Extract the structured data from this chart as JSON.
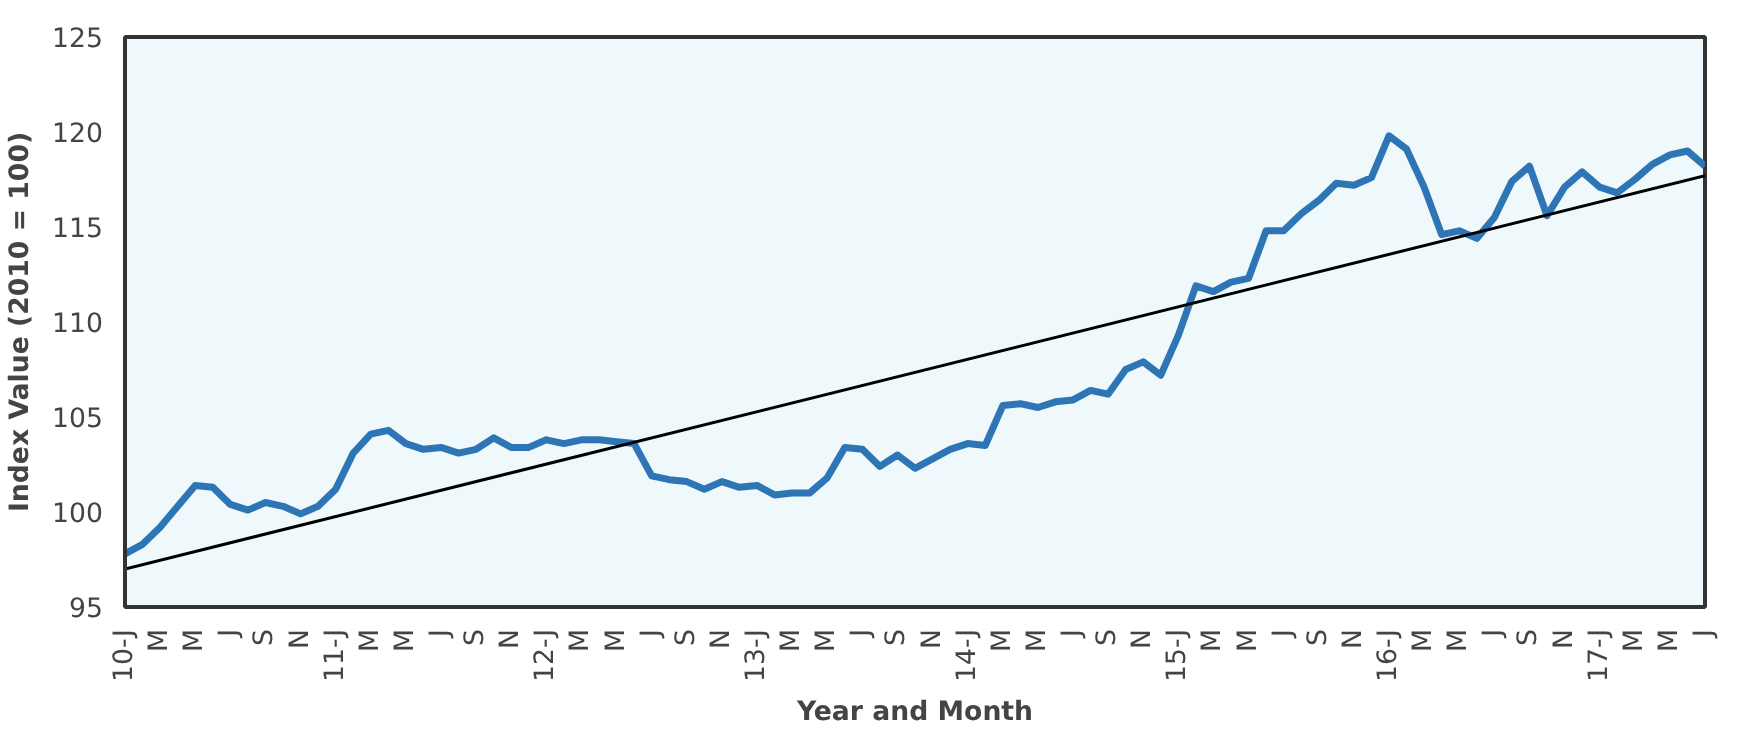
{
  "chart_data": {
    "type": "line",
    "xlabel": "Year and Month",
    "ylabel": "Index Value (2010 = 100)",
    "categories": [
      "10-J",
      null,
      "M",
      null,
      "M",
      null,
      "J",
      null,
      "S",
      null,
      "N",
      null,
      "11-J",
      null,
      "M",
      null,
      "M",
      null,
      "J",
      null,
      "S",
      null,
      "N",
      null,
      "12-J",
      null,
      "M",
      null,
      "M",
      null,
      "J",
      null,
      "S",
      null,
      "N",
      null,
      "13-J",
      null,
      "M",
      null,
      "M",
      null,
      "J",
      null,
      "S",
      null,
      "N",
      null,
      "14-J",
      null,
      "M",
      null,
      "M",
      null,
      "J",
      null,
      "S",
      null,
      "N",
      null,
      "15-J",
      null,
      "M",
      null,
      "M",
      null,
      "J",
      null,
      "S",
      null,
      "N",
      null,
      "16-J",
      null,
      "M",
      null,
      "M",
      null,
      "J",
      null,
      "S",
      null,
      "N",
      null,
      "17-J",
      null,
      "M",
      null,
      "M",
      null,
      "J"
    ],
    "series": [
      {
        "color": "#2e75b6",
        "values": [
          97.8,
          98.3,
          99.2,
          100.3,
          101.4,
          101.3,
          100.4,
          100.1,
          100.5,
          100.3,
          99.9,
          100.3,
          101.2,
          103.1,
          104.1,
          104.3,
          103.6,
          103.3,
          103.4,
          103.1,
          103.3,
          103.9,
          103.4,
          103.4,
          103.8,
          103.6,
          103.8,
          103.8,
          103.7,
          103.6,
          101.9,
          101.7,
          101.6,
          101.2,
          101.6,
          101.3,
          101.4,
          100.9,
          101.0,
          101.0,
          101.8,
          103.4,
          103.3,
          102.4,
          103.0,
          102.3,
          102.8,
          103.3,
          103.6,
          103.5,
          105.6,
          105.7,
          105.5,
          105.8,
          105.9,
          106.4,
          106.2,
          107.5,
          107.9,
          107.2,
          109.3,
          111.9,
          111.6,
          112.1,
          112.3,
          114.8,
          114.8,
          115.7,
          116.4,
          117.3,
          117.2,
          117.6,
          119.8,
          119.1,
          117.1,
          114.6,
          114.8,
          114.4,
          115.5,
          117.4,
          118.2,
          115.6,
          117.1,
          117.9,
          117.1,
          116.8,
          117.5,
          118.3,
          118.8,
          119.0,
          118.2
        ]
      },
      {
        "type": "line",
        "color": "#000000",
        "values": [
          97.0,
          null,
          null,
          null,
          null,
          null,
          null,
          null,
          null,
          null,
          null,
          null,
          null,
          null,
          null,
          null,
          null,
          null,
          null,
          null,
          null,
          null,
          null,
          null,
          null,
          null,
          null,
          null,
          null,
          null,
          null,
          null,
          null,
          null,
          null,
          null,
          null,
          null,
          null,
          null,
          null,
          null,
          null,
          null,
          null,
          null,
          null,
          null,
          null,
          null,
          null,
          null,
          null,
          null,
          null,
          null,
          null,
          null,
          null,
          null,
          null,
          null,
          null,
          null,
          null,
          null,
          null,
          null,
          null,
          null,
          null,
          null,
          null,
          null,
          null,
          null,
          null,
          null,
          null,
          null,
          null,
          null,
          null,
          null,
          null,
          null,
          null,
          null,
          null,
          null,
          117.7
        ]
      }
    ],
    "ylim": [
      95,
      125
    ],
    "yticks": [
      95,
      100,
      105,
      110,
      115,
      120,
      125
    ],
    "grid": false
  }
}
